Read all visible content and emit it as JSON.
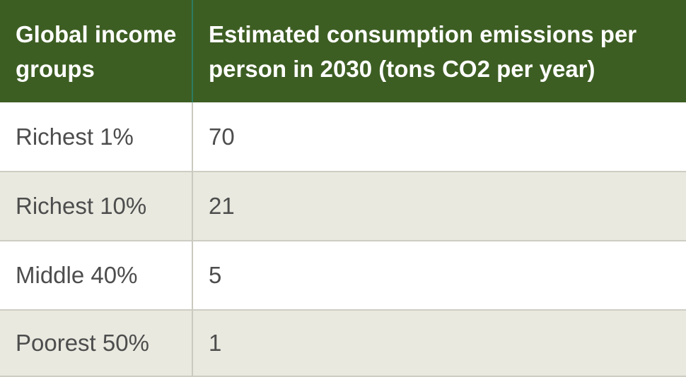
{
  "chart_data": {
    "type": "table",
    "columns": [
      "Global income groups",
      "Estimated consumption emissions per person in 2030 (tons CO2 per year)"
    ],
    "rows": [
      {
        "group": "Richest 1%",
        "value": "70"
      },
      {
        "group": "Richest 10%",
        "value": "21"
      },
      {
        "group": "Middle 40%",
        "value": "5"
      },
      {
        "group": "Poorest 50%",
        "value": "1"
      }
    ],
    "categories": [
      "Richest 1%",
      "Richest 10%",
      "Middle 40%",
      "Poorest 50%"
    ],
    "values": [
      70,
      21,
      5,
      1
    ],
    "title": "Estimated consumption emissions per person in 2030 (tons CO2 per year)"
  },
  "colors": {
    "header_background": "#3d5e23",
    "header_text": "#ffffff",
    "header_divider": "#2e7c60",
    "body_text": "#4d4d4d",
    "row_alternate_background": "#e9e9e0",
    "row_background": "#ffffff",
    "body_divider": "#c9c9bf",
    "row_border": "#cdcdc3"
  }
}
